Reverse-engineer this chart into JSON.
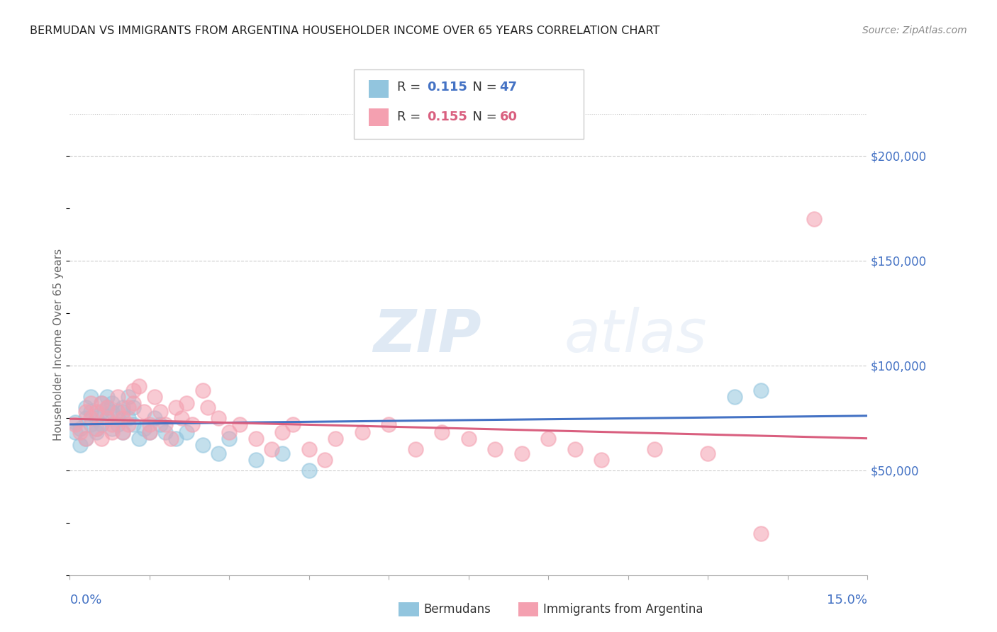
{
  "title": "BERMUDAN VS IMMIGRANTS FROM ARGENTINA HOUSEHOLDER INCOME OVER 65 YEARS CORRELATION CHART",
  "source": "Source: ZipAtlas.com",
  "ylabel": "Householder Income Over 65 years",
  "xlim": [
    0.0,
    0.15
  ],
  "ylim": [
    0,
    220000
  ],
  "yticks": [
    50000,
    100000,
    150000,
    200000
  ],
  "ytick_labels": [
    "$50,000",
    "$100,000",
    "$150,000",
    "$200,000"
  ],
  "r_bermudan": "0.115",
  "n_bermudan": "47",
  "r_argentina": "0.155",
  "n_argentina": "60",
  "legend_label1": "Bermudans",
  "legend_label2": "Immigrants from Argentina",
  "watermark_zip": "ZIP",
  "watermark_atlas": "atlas",
  "blue_color": "#92c5de",
  "pink_color": "#f4a0b0",
  "line_blue": "#4472c4",
  "line_pink": "#d95f7f",
  "text_blue": "#4472c4",
  "text_pink": "#d95f7f",
  "bermudan_x": [
    0.001,
    0.001,
    0.002,
    0.002,
    0.003,
    0.003,
    0.003,
    0.004,
    0.004,
    0.004,
    0.005,
    0.005,
    0.005,
    0.006,
    0.006,
    0.006,
    0.007,
    0.007,
    0.007,
    0.008,
    0.008,
    0.008,
    0.009,
    0.009,
    0.01,
    0.01,
    0.01,
    0.011,
    0.011,
    0.012,
    0.012,
    0.013,
    0.014,
    0.015,
    0.016,
    0.017,
    0.018,
    0.02,
    0.022,
    0.025,
    0.028,
    0.03,
    0.035,
    0.04,
    0.045,
    0.125,
    0.13
  ],
  "bermudan_y": [
    73000,
    68000,
    62000,
    70000,
    75000,
    80000,
    65000,
    85000,
    78000,
    72000,
    68000,
    75000,
    70000,
    82000,
    78000,
    72000,
    85000,
    80000,
    75000,
    70000,
    78000,
    82000,
    75000,
    72000,
    80000,
    78000,
    68000,
    85000,
    75000,
    80000,
    72000,
    65000,
    70000,
    68000,
    75000,
    72000,
    68000,
    65000,
    68000,
    62000,
    58000,
    65000,
    55000,
    58000,
    50000,
    85000,
    88000
  ],
  "argentina_x": [
    0.001,
    0.002,
    0.003,
    0.003,
    0.004,
    0.004,
    0.005,
    0.005,
    0.006,
    0.006,
    0.007,
    0.007,
    0.008,
    0.008,
    0.009,
    0.009,
    0.01,
    0.01,
    0.011,
    0.011,
    0.012,
    0.012,
    0.013,
    0.014,
    0.015,
    0.015,
    0.016,
    0.017,
    0.018,
    0.019,
    0.02,
    0.021,
    0.022,
    0.023,
    0.025,
    0.026,
    0.028,
    0.03,
    0.032,
    0.035,
    0.038,
    0.04,
    0.042,
    0.045,
    0.048,
    0.05,
    0.055,
    0.06,
    0.065,
    0.07,
    0.075,
    0.08,
    0.085,
    0.09,
    0.095,
    0.1,
    0.11,
    0.12,
    0.13,
    0.14
  ],
  "argentina_y": [
    72000,
    68000,
    78000,
    65000,
    82000,
    75000,
    70000,
    78000,
    65000,
    82000,
    75000,
    80000,
    72000,
    68000,
    78000,
    85000,
    75000,
    68000,
    80000,
    72000,
    88000,
    82000,
    90000,
    78000,
    72000,
    68000,
    85000,
    78000,
    72000,
    65000,
    80000,
    75000,
    82000,
    72000,
    88000,
    80000,
    75000,
    68000,
    72000,
    65000,
    60000,
    68000,
    72000,
    60000,
    55000,
    65000,
    68000,
    72000,
    60000,
    68000,
    65000,
    60000,
    58000,
    65000,
    60000,
    55000,
    60000,
    58000,
    20000,
    170000
  ]
}
